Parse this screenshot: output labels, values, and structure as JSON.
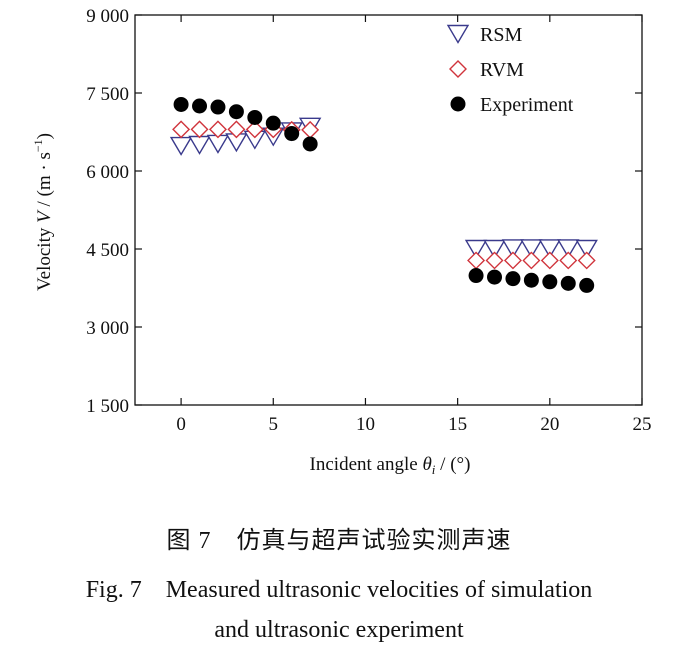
{
  "chart_data": {
    "type": "scatter",
    "xlabel": "Incident angle θ_i / (°)",
    "ylabel": "Velocity V / (m·s^-1)",
    "xlim": [
      -2.5,
      25
    ],
    "ylim": [
      1500,
      9000
    ],
    "xticks": [
      0,
      5,
      10,
      15,
      20,
      25
    ],
    "yticks": [
      1500,
      3000,
      4500,
      6000,
      7500,
      9000
    ],
    "ytick_labels": [
      "1 500",
      "3 000",
      "4 500",
      "6 000",
      "7 500",
      "9 000"
    ],
    "legend_position": "top-right",
    "series": [
      {
        "name": "RSM",
        "marker": "triangle-down",
        "color": "#3a3a8c",
        "x": [
          0,
          1,
          2,
          3,
          4,
          5,
          6,
          7,
          16,
          17,
          18,
          19,
          20,
          21,
          22
        ],
        "y": [
          6480,
          6500,
          6520,
          6550,
          6600,
          6660,
          6760,
          6850,
          4500,
          4500,
          4510,
          4510,
          4510,
          4510,
          4500
        ]
      },
      {
        "name": "RVM",
        "marker": "diamond",
        "color": "#d0343c",
        "x": [
          0,
          1,
          2,
          3,
          4,
          5,
          6,
          7,
          16,
          17,
          18,
          19,
          20,
          21,
          22
        ],
        "y": [
          6800,
          6800,
          6800,
          6800,
          6800,
          6800,
          6790,
          6790,
          4280,
          4280,
          4280,
          4280,
          4280,
          4280,
          4280
        ]
      },
      {
        "name": "Experiment",
        "marker": "circle",
        "color": "#000000",
        "x": [
          0,
          1,
          2,
          3,
          4,
          5,
          6,
          7,
          16,
          17,
          18,
          19,
          20,
          21,
          22
        ],
        "y": [
          7280,
          7250,
          7230,
          7140,
          7030,
          6920,
          6720,
          6520,
          3990,
          3960,
          3930,
          3900,
          3870,
          3840,
          3800
        ]
      }
    ]
  },
  "caption": {
    "cn": "图 7　仿真与超声试验实测声速",
    "en_line1": "Fig. 7　Measured ultrasonic velocities of simulation",
    "en_line2": "and ultrasonic experiment"
  }
}
